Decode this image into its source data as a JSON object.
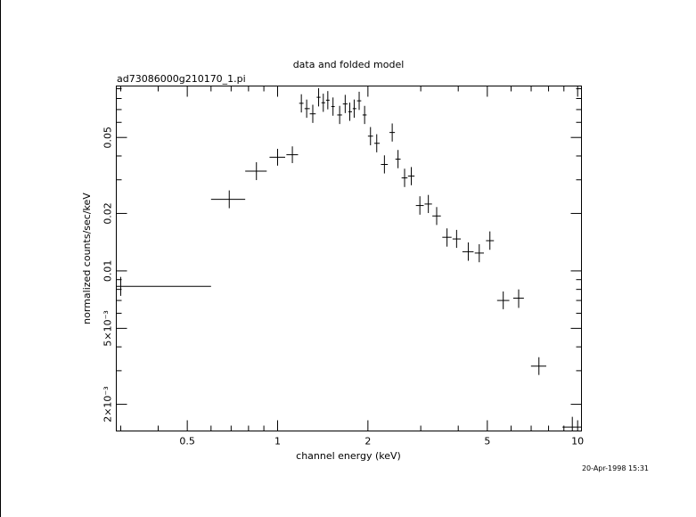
{
  "chart_data": {
    "type": "scatter",
    "title": "data and folded model",
    "subtitle": "ad73086000g210170_1.pi",
    "xlabel": "channel energy (keV)",
    "ylabel": "normalized counts/sec/keV",
    "timestamp": "20-Apr-1998 15:31",
    "x_scale": "log",
    "y_scale": "log",
    "xlim": [
      0.29,
      10.3
    ],
    "ylim": [
      0.00145,
      0.093
    ],
    "grid": false,
    "x_ticks": [
      {
        "value": 0.5,
        "label": "0.5"
      },
      {
        "value": 1,
        "label": "1"
      },
      {
        "value": 2,
        "label": "2"
      },
      {
        "value": 5,
        "label": "5"
      },
      {
        "value": 10,
        "label": "10"
      }
    ],
    "y_ticks": [
      {
        "value": 0.002,
        "label": "2×10⁻³"
      },
      {
        "value": 0.005,
        "label": "5×10⁻³"
      },
      {
        "value": 0.01,
        "label": "0.01"
      },
      {
        "value": 0.02,
        "label": "0.02"
      },
      {
        "value": 0.05,
        "label": "0.05"
      }
    ],
    "series": [
      {
        "points": [
          {
            "x": 0.3,
            "xlo": 0.29,
            "xhi": 0.6,
            "y": 0.0083,
            "ylo": 0.0074,
            "yhi": 0.0093
          },
          {
            "x": 0.69,
            "xlo": 0.6,
            "xhi": 0.78,
            "y": 0.0237,
            "ylo": 0.0213,
            "yhi": 0.0264
          },
          {
            "x": 0.85,
            "xlo": 0.78,
            "xhi": 0.92,
            "y": 0.0333,
            "ylo": 0.0299,
            "yhi": 0.0371
          },
          {
            "x": 1.0,
            "xlo": 0.94,
            "xhi": 1.06,
            "y": 0.0394,
            "ylo": 0.0356,
            "yhi": 0.0436
          },
          {
            "x": 1.12,
            "xlo": 1.07,
            "xhi": 1.17,
            "y": 0.0406,
            "ylo": 0.0367,
            "yhi": 0.0449
          },
          {
            "x": 1.2,
            "xlo": 1.18,
            "xhi": 1.22,
            "y": 0.0755,
            "ylo": 0.0676,
            "yhi": 0.0842
          },
          {
            "x": 1.25,
            "xlo": 1.23,
            "xhi": 1.28,
            "y": 0.0708,
            "ylo": 0.0634,
            "yhi": 0.079
          },
          {
            "x": 1.31,
            "xlo": 1.28,
            "xhi": 1.34,
            "y": 0.0665,
            "ylo": 0.0596,
            "yhi": 0.0742
          },
          {
            "x": 1.37,
            "xlo": 1.35,
            "xhi": 1.39,
            "y": 0.0812,
            "ylo": 0.0727,
            "yhi": 0.0906
          },
          {
            "x": 1.42,
            "xlo": 1.4,
            "xhi": 1.44,
            "y": 0.076,
            "ylo": 0.0681,
            "yhi": 0.0848
          },
          {
            "x": 1.47,
            "xlo": 1.45,
            "xhi": 1.49,
            "y": 0.0784,
            "ylo": 0.0702,
            "yhi": 0.0875
          },
          {
            "x": 1.53,
            "xlo": 1.51,
            "xhi": 1.55,
            "y": 0.0726,
            "ylo": 0.065,
            "yhi": 0.081
          },
          {
            "x": 1.61,
            "xlo": 1.58,
            "xhi": 1.64,
            "y": 0.0656,
            "ylo": 0.0588,
            "yhi": 0.0732
          },
          {
            "x": 1.68,
            "xlo": 1.65,
            "xhi": 1.71,
            "y": 0.0749,
            "ylo": 0.0671,
            "yhi": 0.0836
          },
          {
            "x": 1.74,
            "xlo": 1.72,
            "xhi": 1.77,
            "y": 0.0682,
            "ylo": 0.0611,
            "yhi": 0.0761
          },
          {
            "x": 1.8,
            "xlo": 1.78,
            "xhi": 1.83,
            "y": 0.0708,
            "ylo": 0.0634,
            "yhi": 0.079
          },
          {
            "x": 1.87,
            "xlo": 1.84,
            "xhi": 1.9,
            "y": 0.0778,
            "ylo": 0.0697,
            "yhi": 0.0868
          },
          {
            "x": 1.95,
            "xlo": 1.92,
            "xhi": 1.98,
            "y": 0.0656,
            "ylo": 0.0588,
            "yhi": 0.0732
          },
          {
            "x": 2.04,
            "xlo": 2.0,
            "xhi": 2.08,
            "y": 0.0508,
            "ylo": 0.0455,
            "yhi": 0.0567
          },
          {
            "x": 2.14,
            "xlo": 2.1,
            "xhi": 2.19,
            "y": 0.0466,
            "ylo": 0.0418,
            "yhi": 0.052
          },
          {
            "x": 2.27,
            "xlo": 2.21,
            "xhi": 2.33,
            "y": 0.0361,
            "ylo": 0.0324,
            "yhi": 0.0403
          },
          {
            "x": 2.41,
            "xlo": 2.36,
            "xhi": 2.46,
            "y": 0.0531,
            "ylo": 0.0476,
            "yhi": 0.0592
          },
          {
            "x": 2.52,
            "xlo": 2.47,
            "xhi": 2.57,
            "y": 0.0385,
            "ylo": 0.0345,
            "yhi": 0.043
          },
          {
            "x": 2.65,
            "xlo": 2.59,
            "xhi": 2.71,
            "y": 0.0307,
            "ylo": 0.0275,
            "yhi": 0.0343
          },
          {
            "x": 2.79,
            "xlo": 2.72,
            "xhi": 2.86,
            "y": 0.0314,
            "ylo": 0.0281,
            "yhi": 0.035
          },
          {
            "x": 2.98,
            "xlo": 2.89,
            "xhi": 3.07,
            "y": 0.022,
            "ylo": 0.0197,
            "yhi": 0.0246
          },
          {
            "x": 3.18,
            "xlo": 3.09,
            "xhi": 3.27,
            "y": 0.0224,
            "ylo": 0.0201,
            "yhi": 0.025
          },
          {
            "x": 3.39,
            "xlo": 3.28,
            "xhi": 3.5,
            "y": 0.0194,
            "ylo": 0.0174,
            "yhi": 0.0216
          },
          {
            "x": 3.67,
            "xlo": 3.54,
            "xhi": 3.8,
            "y": 0.015,
            "ylo": 0.0134,
            "yhi": 0.0167
          },
          {
            "x": 3.95,
            "xlo": 3.83,
            "xhi": 4.08,
            "y": 0.0147,
            "ylo": 0.0132,
            "yhi": 0.0164
          },
          {
            "x": 4.32,
            "xlo": 4.13,
            "xhi": 4.5,
            "y": 0.0126,
            "ylo": 0.0113,
            "yhi": 0.0141
          },
          {
            "x": 4.7,
            "xlo": 4.54,
            "xhi": 4.87,
            "y": 0.0124,
            "ylo": 0.0111,
            "yhi": 0.0138
          },
          {
            "x": 5.1,
            "xlo": 4.95,
            "xhi": 5.26,
            "y": 0.0144,
            "ylo": 0.0129,
            "yhi": 0.0161
          },
          {
            "x": 5.65,
            "xlo": 5.39,
            "xhi": 5.92,
            "y": 0.007,
            "ylo": 0.0063,
            "yhi": 0.0078
          },
          {
            "x": 6.36,
            "xlo": 6.1,
            "xhi": 6.62,
            "y": 0.0072,
            "ylo": 0.0064,
            "yhi": 0.008
          },
          {
            "x": 7.43,
            "xlo": 6.99,
            "xhi": 7.86,
            "y": 0.00317,
            "ylo": 0.00285,
            "yhi": 0.00353
          },
          {
            "x": 9.6,
            "xlo": 8.9,
            "xhi": 10.3,
            "y": 0.00152,
            "ylo": 0.00145,
            "yhi": 0.00172
          }
        ]
      }
    ]
  }
}
